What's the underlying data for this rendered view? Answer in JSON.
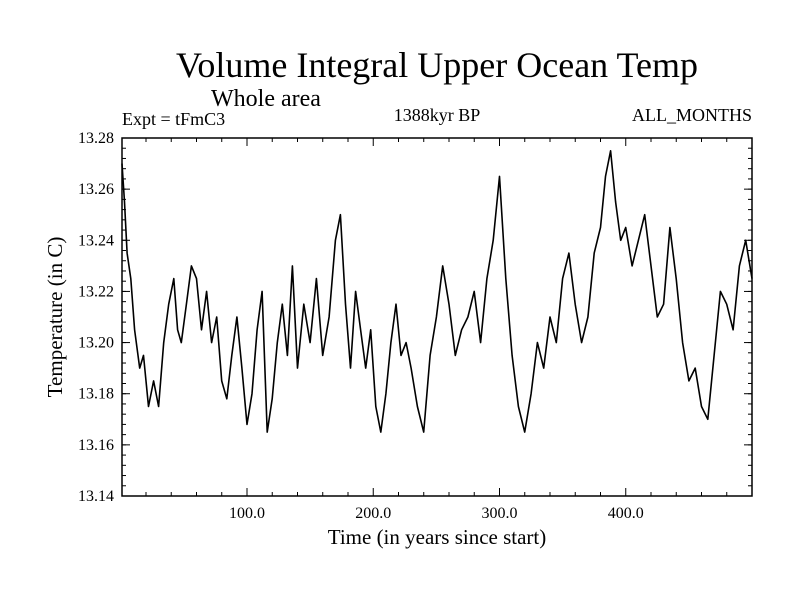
{
  "chart_data": {
    "type": "line",
    "title": "Volume Integral Upper Ocean Temp",
    "subtitle": "Whole area",
    "experiment_label": "Expt = tFmC3",
    "period_label": "1388kyr BP",
    "months_label": "ALL_MONTHS",
    "xlabel": "Time (in years since start)",
    "ylabel": "Temperature (in C)",
    "xlim": [
      1,
      500
    ],
    "ylim": [
      13.14,
      13.28
    ],
    "x_ticks": [
      100,
      200,
      300,
      400
    ],
    "x_tick_labels": [
      "100.0",
      "200.0",
      "300.0",
      "400.0"
    ],
    "y_ticks": [
      13.14,
      13.16,
      13.18,
      13.2,
      13.22,
      13.24,
      13.26,
      13.28
    ],
    "y_tick_labels": [
      "13.14",
      "13.16",
      "13.18",
      "13.20",
      "13.22",
      "13.24",
      "13.26",
      "13.28"
    ],
    "grid": false,
    "line_color": "#000000",
    "series": [
      {
        "name": "Volume integral upper ocean temperature",
        "x": [
          1,
          3,
          5,
          8,
          11,
          15,
          18,
          22,
          26,
          30,
          34,
          38,
          42,
          45,
          48,
          52,
          56,
          60,
          64,
          68,
          72,
          76,
          80,
          84,
          88,
          92,
          96,
          100,
          104,
          108,
          112,
          116,
          120,
          124,
          128,
          132,
          136,
          140,
          145,
          150,
          155,
          160,
          165,
          170,
          174,
          178,
          182,
          186,
          190,
          194,
          198,
          202,
          206,
          210,
          214,
          218,
          222,
          226,
          230,
          235,
          240,
          245,
          250,
          255,
          260,
          265,
          270,
          275,
          280,
          285,
          290,
          295,
          300,
          305,
          310,
          315,
          320,
          325,
          330,
          335,
          340,
          345,
          350,
          355,
          360,
          365,
          370,
          375,
          380,
          384,
          388,
          392,
          396,
          400,
          405,
          410,
          415,
          420,
          425,
          430,
          435,
          440,
          445,
          450,
          455,
          460,
          465,
          470,
          475,
          480,
          485,
          490,
          495,
          500
        ],
        "y": [
          13.27,
          13.255,
          13.235,
          13.225,
          13.205,
          13.19,
          13.195,
          13.175,
          13.185,
          13.175,
          13.2,
          13.215,
          13.225,
          13.205,
          13.2,
          13.215,
          13.23,
          13.225,
          13.205,
          13.22,
          13.2,
          13.21,
          13.185,
          13.178,
          13.195,
          13.21,
          13.19,
          13.168,
          13.18,
          13.205,
          13.22,
          13.165,
          13.178,
          13.2,
          13.215,
          13.195,
          13.23,
          13.19,
          13.215,
          13.2,
          13.225,
          13.195,
          13.21,
          13.24,
          13.25,
          13.215,
          13.19,
          13.22,
          13.205,
          13.19,
          13.205,
          13.175,
          13.165,
          13.18,
          13.2,
          13.215,
          13.195,
          13.2,
          13.19,
          13.175,
          13.165,
          13.195,
          13.21,
          13.23,
          13.215,
          13.195,
          13.205,
          13.21,
          13.22,
          13.2,
          13.225,
          13.24,
          13.265,
          13.225,
          13.195,
          13.175,
          13.165,
          13.18,
          13.2,
          13.19,
          13.21,
          13.2,
          13.225,
          13.235,
          13.215,
          13.2,
          13.21,
          13.235,
          13.245,
          13.265,
          13.275,
          13.255,
          13.24,
          13.245,
          13.23,
          13.24,
          13.25,
          13.23,
          13.21,
          13.215,
          13.245,
          13.225,
          13.2,
          13.185,
          13.19,
          13.175,
          13.17,
          13.195,
          13.22,
          13.215,
          13.205,
          13.23,
          13.24,
          13.225
        ]
      }
    ]
  }
}
